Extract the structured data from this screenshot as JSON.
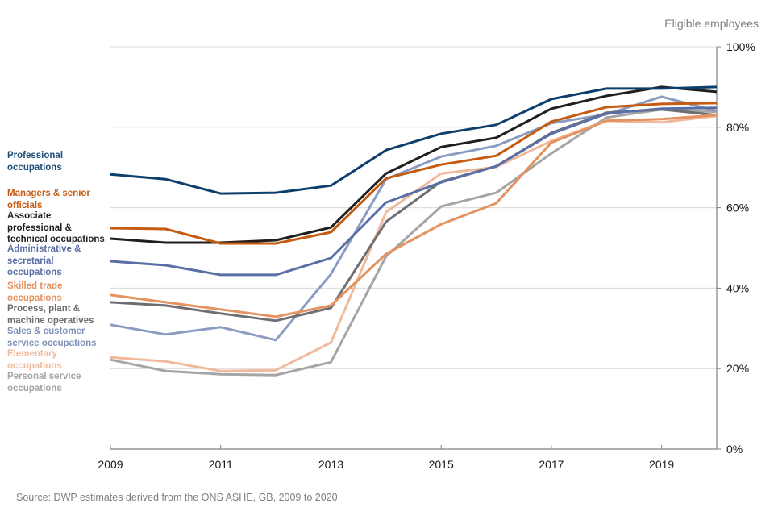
{
  "chart_data": {
    "type": "line",
    "title": "",
    "unit_label": "Eligible employees",
    "xlabel": "",
    "ylabel": "",
    "x": [
      2009,
      2010,
      2011,
      2012,
      2013,
      2014,
      2015,
      2016,
      2017,
      2018,
      2019,
      2020
    ],
    "x_ticks": [
      "2009",
      "2011",
      "2013",
      "2015",
      "2017",
      "2019"
    ],
    "y_ticks": [
      "0%",
      "20%",
      "40%",
      "60%",
      "80%",
      "100%"
    ],
    "ylim": [
      0,
      100
    ],
    "grid": true,
    "y_axis_side": "right",
    "legend_placement": "left",
    "series": [
      {
        "name": "Professional occupations",
        "color": "#0e3f6c",
        "values": [
          68.3,
          67.1,
          63.5,
          63.7,
          65.5,
          74.3,
          78.4,
          80.6,
          87.0,
          89.6,
          89.6,
          90.0
        ]
      },
      {
        "name": "Managers & senior officials",
        "color": "#c55a11",
        "values": [
          54.9,
          54.7,
          51.1,
          51.1,
          53.9,
          67.3,
          70.7,
          72.9,
          81.4,
          85.0,
          85.8,
          86.0
        ]
      },
      {
        "name": "Associate professional & technical occupations",
        "color": "#1f1f1f",
        "values": [
          52.3,
          51.3,
          51.3,
          51.9,
          55.1,
          68.5,
          75.1,
          77.4,
          84.6,
          87.8,
          90.0,
          88.8
        ]
      },
      {
        "name": "Administrative & secretarial occupations",
        "color": "#5a6fa5",
        "values": [
          46.7,
          45.7,
          43.3,
          43.3,
          47.5,
          61.3,
          66.3,
          70.3,
          78.4,
          83.4,
          84.6,
          84.8
        ]
      },
      {
        "name": "Skilled trade occupations",
        "color": "#e4925f",
        "values": [
          38.3,
          36.5,
          34.7,
          32.9,
          35.7,
          48.5,
          55.9,
          61.1,
          76.2,
          81.6,
          82.0,
          83.0
        ]
      },
      {
        "name": "Process, plant & machine operatives",
        "color": "#6e6e72",
        "values": [
          36.5,
          35.7,
          33.7,
          31.9,
          35.1,
          56.5,
          66.5,
          70.3,
          78.6,
          83.6,
          84.4,
          83.0
        ]
      },
      {
        "name": "Sales & customer service occupations",
        "color": "#8a9cc2",
        "values": [
          30.9,
          28.5,
          30.3,
          27.1,
          43.5,
          67.1,
          72.7,
          75.4,
          81.0,
          83.2,
          87.6,
          84.0
        ]
      },
      {
        "name": "Elementary occupations",
        "color": "#f1b99b",
        "values": [
          22.8,
          21.8,
          19.4,
          19.6,
          26.5,
          58.9,
          68.5,
          70.1,
          76.6,
          81.6,
          81.2,
          82.8
        ]
      },
      {
        "name": "Personal service occupations",
        "color": "#a5a5a5",
        "values": [
          22.2,
          19.4,
          18.6,
          18.4,
          21.6,
          47.9,
          60.3,
          63.7,
          73.5,
          82.4,
          84.4,
          83.8
        ]
      }
    ],
    "legend": [
      {
        "label": "Professional\noccupations",
        "color": "#1f4e79"
      },
      {
        "label": "Managers & senior\nofficials",
        "color": "#c55a11"
      },
      {
        "label": "Associate\nprofessional &\ntechnical occupations",
        "color": "#1f1f1f"
      },
      {
        "label": "Administrative &\nsecretarial\noccupations",
        "color": "#5a6fa5"
      },
      {
        "label": "Skilled trade\noccupations",
        "color": "#e4925f"
      },
      {
        "label": "Process, plant &\nmachine operatives",
        "color": "#6e6e72"
      },
      {
        "label": "Sales & customer\nservice occupations",
        "color": "#7f90b8"
      },
      {
        "label": "Elementary\noccupations",
        "color": "#f1b99b"
      },
      {
        "label": "Personal service\noccupations",
        "color": "#a5a5a5"
      }
    ]
  },
  "source": "Source: DWP estimates derived from the ONS ASHE, GB, 2009 to 2020"
}
